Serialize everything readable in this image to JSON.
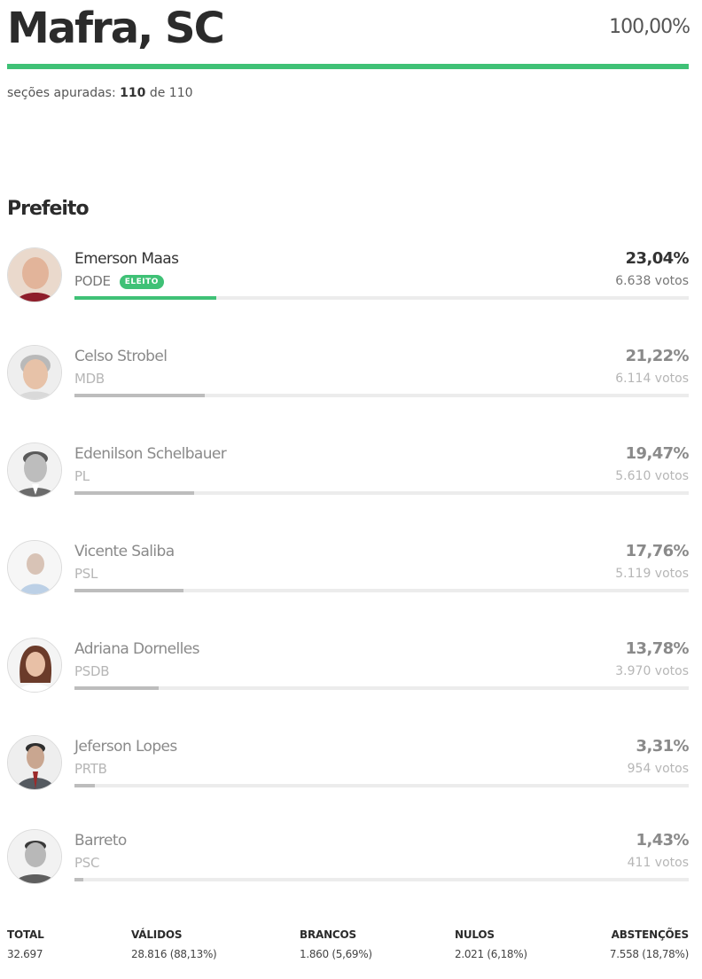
{
  "header": {
    "city": "Mafra, SC",
    "percent_counted": "100,00%",
    "progress_fraction": 1.0,
    "sections_prefix": "seções apuradas:",
    "sections_done": "110",
    "sections_sep": "de",
    "sections_total": "110"
  },
  "office": "Prefeito",
  "badge_label": "ELEITO",
  "colors": {
    "accent": "#3fc176",
    "bar_gray": "#bdbdbd"
  },
  "candidates": [
    {
      "name": "Emerson Maas",
      "party": "PODE",
      "percent": "23,04%",
      "votes": "6.638 votos",
      "share": 23.04,
      "elected": true
    },
    {
      "name": "Celso Strobel",
      "party": "MDB",
      "percent": "21,22%",
      "votes": "6.114 votos",
      "share": 21.22,
      "elected": false
    },
    {
      "name": "Edenilson Schelbauer",
      "party": "PL",
      "percent": "19,47%",
      "votes": "5.610 votos",
      "share": 19.47,
      "elected": false
    },
    {
      "name": "Vicente Saliba",
      "party": "PSL",
      "percent": "17,76%",
      "votes": "5.119 votos",
      "share": 17.76,
      "elected": false
    },
    {
      "name": "Adriana Dornelles",
      "party": "PSDB",
      "percent": "13,78%",
      "votes": "3.970 votos",
      "share": 13.78,
      "elected": false
    },
    {
      "name": "Jeferson Lopes",
      "party": "PRTB",
      "percent": "3,31%",
      "votes": "954 votos",
      "share": 3.31,
      "elected": false
    },
    {
      "name": "Barreto",
      "party": "PSC",
      "percent": "1,43%",
      "votes": "411 votos",
      "share": 1.43,
      "elected": false
    }
  ],
  "totals": {
    "total": {
      "label": "TOTAL",
      "value": "32.697"
    },
    "validos": {
      "label": "VÁLIDOS",
      "value": "28.816 (88,13%)"
    },
    "brancos": {
      "label": "BRANCOS",
      "value": "1.860 (5,69%)"
    },
    "nulos": {
      "label": "NULOS",
      "value": "2.021 (6,18%)"
    },
    "abstencoes": {
      "label": "ABSTENÇÕES",
      "value": "7.558 (18,78%)"
    }
  }
}
